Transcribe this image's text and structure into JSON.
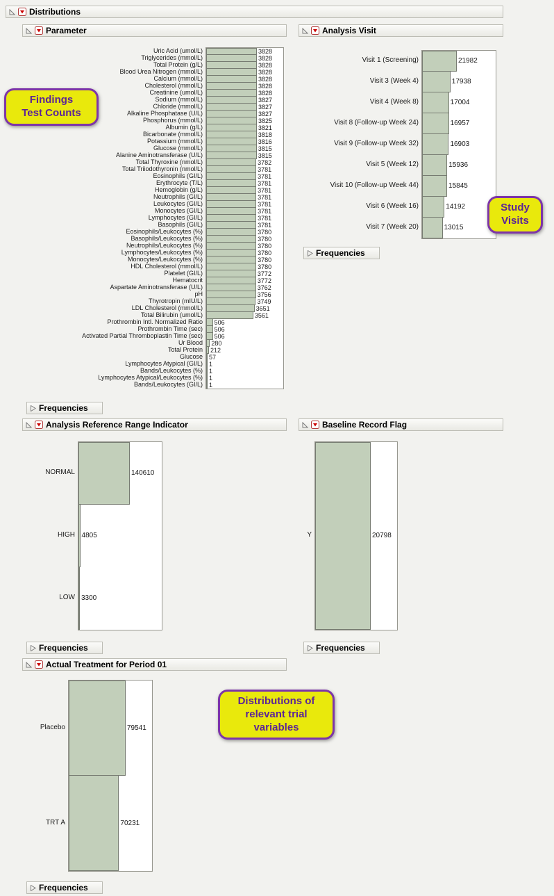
{
  "app": {
    "title": "Distributions"
  },
  "labels": {
    "frequencies": "Frequencies"
  },
  "colors": {
    "bar_fill": "#c2cfba",
    "bar_border": "#767b71",
    "callout_bg": "#e9e90c",
    "callout_border": "#7d35a8",
    "callout_text": "#5c2496",
    "menu_red": "#cc0000"
  },
  "callouts": {
    "findings": [
      "Findings",
      "Test Counts"
    ],
    "study_visits": [
      "Study",
      "Visits"
    ],
    "distributions_note": [
      "Distributions of",
      "relevant trial",
      "variables"
    ]
  },
  "charts": {
    "parameter": {
      "title": "Parameter",
      "type": "bar",
      "categories": [
        "Uric Acid (umol/L)",
        "Triglycerides (mmol/L)",
        "Total Protein (g/L)",
        "Blood Urea Nitrogen (mmol/L)",
        "Calcium (mmol/L)",
        "Cholesterol (mmol/L)",
        "Creatinine (umol/L)",
        "Sodium (mmol/L)",
        "Chloride (mmol/L)",
        "Alkaline Phosphatase (U/L)",
        "Phosphorus (mmol/L)",
        "Albumin (g/L)",
        "Bicarbonate (mmol/L)",
        "Potassium (mmol/L)",
        "Glucose (mmol/L)",
        "Alanine Aminotransferase (U/L)",
        "Total Thyroxine (nmol/L)",
        "Total Triiodothyronin (nmol/L)",
        "Eosinophils (GI/L)",
        "Erythrocyte (T/L)",
        "Hemoglobin (g/L)",
        "Neutrophils (GI/L)",
        "Leukocytes (GI/L)",
        "Monocytes (GI/L)",
        "Lymphocytes (GI/L)",
        "Basophils (GI/L)",
        "Eosinophils/Leukocytes (%)",
        "Basophils/Leukocytes (%)",
        "Neutrophils/Leukocytes (%)",
        "Lymphocytes/Leukocytes (%)",
        "Monocytes/Leukocytes (%)",
        "HDL Cholesterol (mmol/L)",
        "Platelet (GI/L)",
        "Hematocrit",
        "Aspartate Aminotransferase (U/L)",
        "pH",
        "Thyrotropin (mIU/L)",
        "LDL Cholesterol (mmol/L)",
        "Total Bilirubin (umol/L)",
        "Prothrombin Intl. Normalized Ratio",
        "Prothrombin Time (sec)",
        "Activated Partial Thromboplastin Time (sec)",
        "Ur Blood",
        "Total Protein",
        "Glucose",
        "Lymphocytes Atypical (GI/L)",
        "Bands/Leukocytes (%)",
        "Lymphocytes Atypical/Leukocytes (%)",
        "Bands/Leukocytes (GI/L)"
      ],
      "values": [
        3828,
        3828,
        3828,
        3828,
        3828,
        3828,
        3828,
        3827,
        3827,
        3827,
        3825,
        3821,
        3818,
        3816,
        3815,
        3815,
        3782,
        3781,
        3781,
        3781,
        3781,
        3781,
        3781,
        3781,
        3781,
        3781,
        3780,
        3780,
        3780,
        3780,
        3780,
        3780,
        3772,
        3772,
        3762,
        3756,
        3749,
        3651,
        3561,
        506,
        506,
        506,
        280,
        212,
        57,
        1,
        1,
        1,
        1
      ]
    },
    "analysis_visit": {
      "title": "Analysis Visit",
      "type": "bar",
      "categories": [
        "Visit 1 (Screening)",
        "Visit 3 (Week 4)",
        "Visit 4 (Week 8)",
        "Visit 8 (Follow-up Week 24)",
        "Visit 9 (Follow-up Week 32)",
        "Visit 5 (Week 12)",
        "Visit 10 (Follow-up Week 44)",
        "Visit 6 (Week 16)",
        "Visit 7 (Week 20)"
      ],
      "values": [
        21982,
        17938,
        17004,
        16957,
        16903,
        15936,
        15845,
        14192,
        13015
      ]
    },
    "anrind": {
      "title": "Analysis Reference Range Indicator",
      "type": "bar",
      "categories": [
        "NORMAL",
        "HIGH",
        "LOW"
      ],
      "values": [
        140610,
        4805,
        3300
      ]
    },
    "baseline": {
      "title": "Baseline Record Flag",
      "type": "bar",
      "categories": [
        "Y"
      ],
      "values": [
        20798
      ]
    },
    "treatment": {
      "title": "Actual Treatment for Period 01",
      "type": "bar",
      "categories": [
        "Placebo",
        "TRT A"
      ],
      "values": [
        79541,
        70231
      ]
    }
  }
}
